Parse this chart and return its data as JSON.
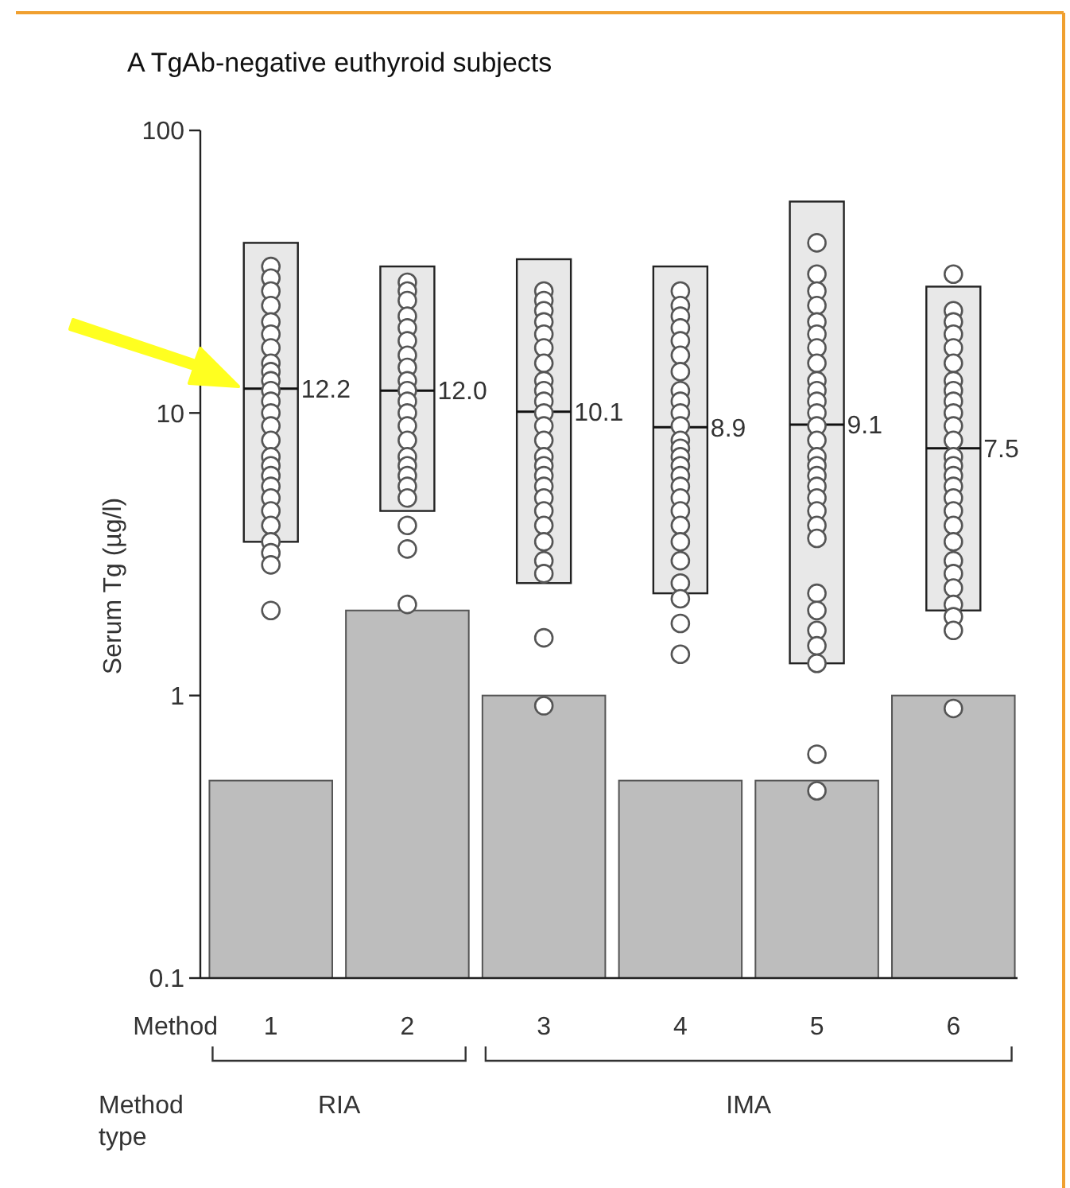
{
  "chart_data": {
    "type": "bar",
    "title": "A TgAb-negative euthyroid subjects",
    "ylabel": "Serum Tg (µg/l)",
    "xlabel": "Method",
    "categories": [
      "1",
      "2",
      "3",
      "4",
      "5",
      "6"
    ],
    "log": true,
    "ylim": [
      0.1,
      100
    ],
    "yticks": [
      0.1,
      1,
      10,
      100
    ],
    "grid": false,
    "annotations": [
      "Method type",
      "RIA",
      "IMA"
    ],
    "series": [
      {
        "color": "#bdbdbd",
        "values": [
          0.5,
          2,
          1,
          0.5,
          0.5,
          1
        ]
      },
      {
        "type": "box",
        "color": "#e8e8e8",
        "value_labels": [
          "12.2",
          "12.0",
          "10.1",
          "8.9",
          "9.1",
          "7.5"
        ],
        "boxes": [
          {
            "low": 3.5,
            "q1": 3.5,
            "median": 12.2,
            "q3": 40,
            "high": 40
          },
          {
            "low": 4.5,
            "q1": 4.5,
            "median": 12.0,
            "q3": 33,
            "high": 33
          },
          {
            "low": 2.5,
            "q1": 2.5,
            "median": 10.1,
            "q3": 35,
            "high": 35
          },
          {
            "low": 2.3,
            "q1": 2.3,
            "median": 8.9,
            "q3": 33,
            "high": 33
          },
          {
            "low": 1.3,
            "q1": 1.3,
            "median": 9.1,
            "q3": 56,
            "high": 56
          },
          {
            "low": 2.0,
            "q1": 2.0,
            "median": 7.5,
            "q3": 28,
            "high": 28
          }
        ]
      },
      {
        "type": "scatter",
        "color": "#ffffff",
        "marker": "circle",
        "x": [
          "1",
          "1",
          "1",
          "1",
          "1",
          "1",
          "1",
          "1",
          "1",
          "1",
          "1",
          "1",
          "1",
          "1",
          "1",
          "1",
          "1",
          "1",
          "1",
          "1",
          "1",
          "1",
          "1",
          "1",
          "1",
          "1",
          "2",
          "2",
          "2",
          "2",
          "2",
          "2",
          "2",
          "2",
          "2",
          "2",
          "2",
          "2",
          "2",
          "2",
          "2",
          "2",
          "2",
          "2",
          "2",
          "2",
          "2",
          "2",
          "3",
          "3",
          "3",
          "3",
          "3",
          "3",
          "3",
          "3",
          "3",
          "3",
          "3",
          "3",
          "3",
          "3",
          "3",
          "3",
          "3",
          "3",
          "3",
          "3",
          "3",
          "3",
          "3",
          "3",
          "3",
          "4",
          "4",
          "4",
          "4",
          "4",
          "4",
          "4",
          "4",
          "4",
          "4",
          "4",
          "4",
          "4",
          "4",
          "4",
          "4",
          "4",
          "4",
          "4",
          "4",
          "4",
          "4",
          "4",
          "4",
          "4",
          "4",
          "5",
          "5",
          "5",
          "5",
          "5",
          "5",
          "5",
          "5",
          "5",
          "5",
          "5",
          "5",
          "5",
          "5",
          "5",
          "5",
          "5",
          "5",
          "5",
          "5",
          "5",
          "5",
          "5",
          "5",
          "5",
          "5",
          "5",
          "5",
          "5",
          "6",
          "6",
          "6",
          "6",
          "6",
          "6",
          "6",
          "6",
          "6",
          "6",
          "6",
          "6",
          "6",
          "6",
          "6",
          "6",
          "6",
          "6",
          "6",
          "6",
          "6",
          "6",
          "6",
          "6",
          "6",
          "6",
          "6"
        ],
        "values": [
          33,
          30,
          27,
          24,
          21,
          19,
          17,
          15,
          14,
          13,
          12,
          11,
          10,
          9,
          8,
          7,
          6.5,
          6,
          5.5,
          5,
          4.5,
          4,
          3.5,
          3.2,
          2.9,
          2.0,
          29,
          27,
          25,
          22,
          20,
          18,
          16,
          14.5,
          13,
          12,
          11,
          10,
          9,
          8,
          7,
          6.5,
          6,
          5.5,
          5,
          4.0,
          3.3,
          2.1,
          27,
          25,
          23,
          21,
          19,
          17,
          15,
          13,
          12,
          11,
          10,
          9,
          8,
          7,
          6.5,
          6,
          5.5,
          5,
          4.5,
          4,
          3.5,
          3,
          2.7,
          1.6,
          0.92,
          27,
          24,
          22,
          20,
          18,
          16,
          14,
          12,
          11,
          10,
          9,
          8,
          7.5,
          7,
          6.5,
          6,
          5.5,
          5,
          4.5,
          4,
          3.5,
          3,
          2.5,
          2.2,
          1.8,
          1.4,
          40,
          31,
          27,
          24,
          21,
          19,
          17,
          15,
          13,
          12,
          11,
          10,
          9,
          8,
          7,
          6.5,
          6,
          5.5,
          5,
          4.5,
          4,
          3.6,
          2.3,
          2.0,
          1.7,
          1.5,
          1.3,
          0.62,
          0.46,
          31,
          23,
          21,
          19,
          17,
          15,
          13,
          12,
          11,
          10,
          9,
          8,
          7,
          6.5,
          6,
          5.5,
          5,
          4.5,
          4,
          3.5,
          3,
          2.7,
          2.4,
          2.1,
          1.9,
          1.7,
          0.9
        ]
      }
    ]
  }
}
